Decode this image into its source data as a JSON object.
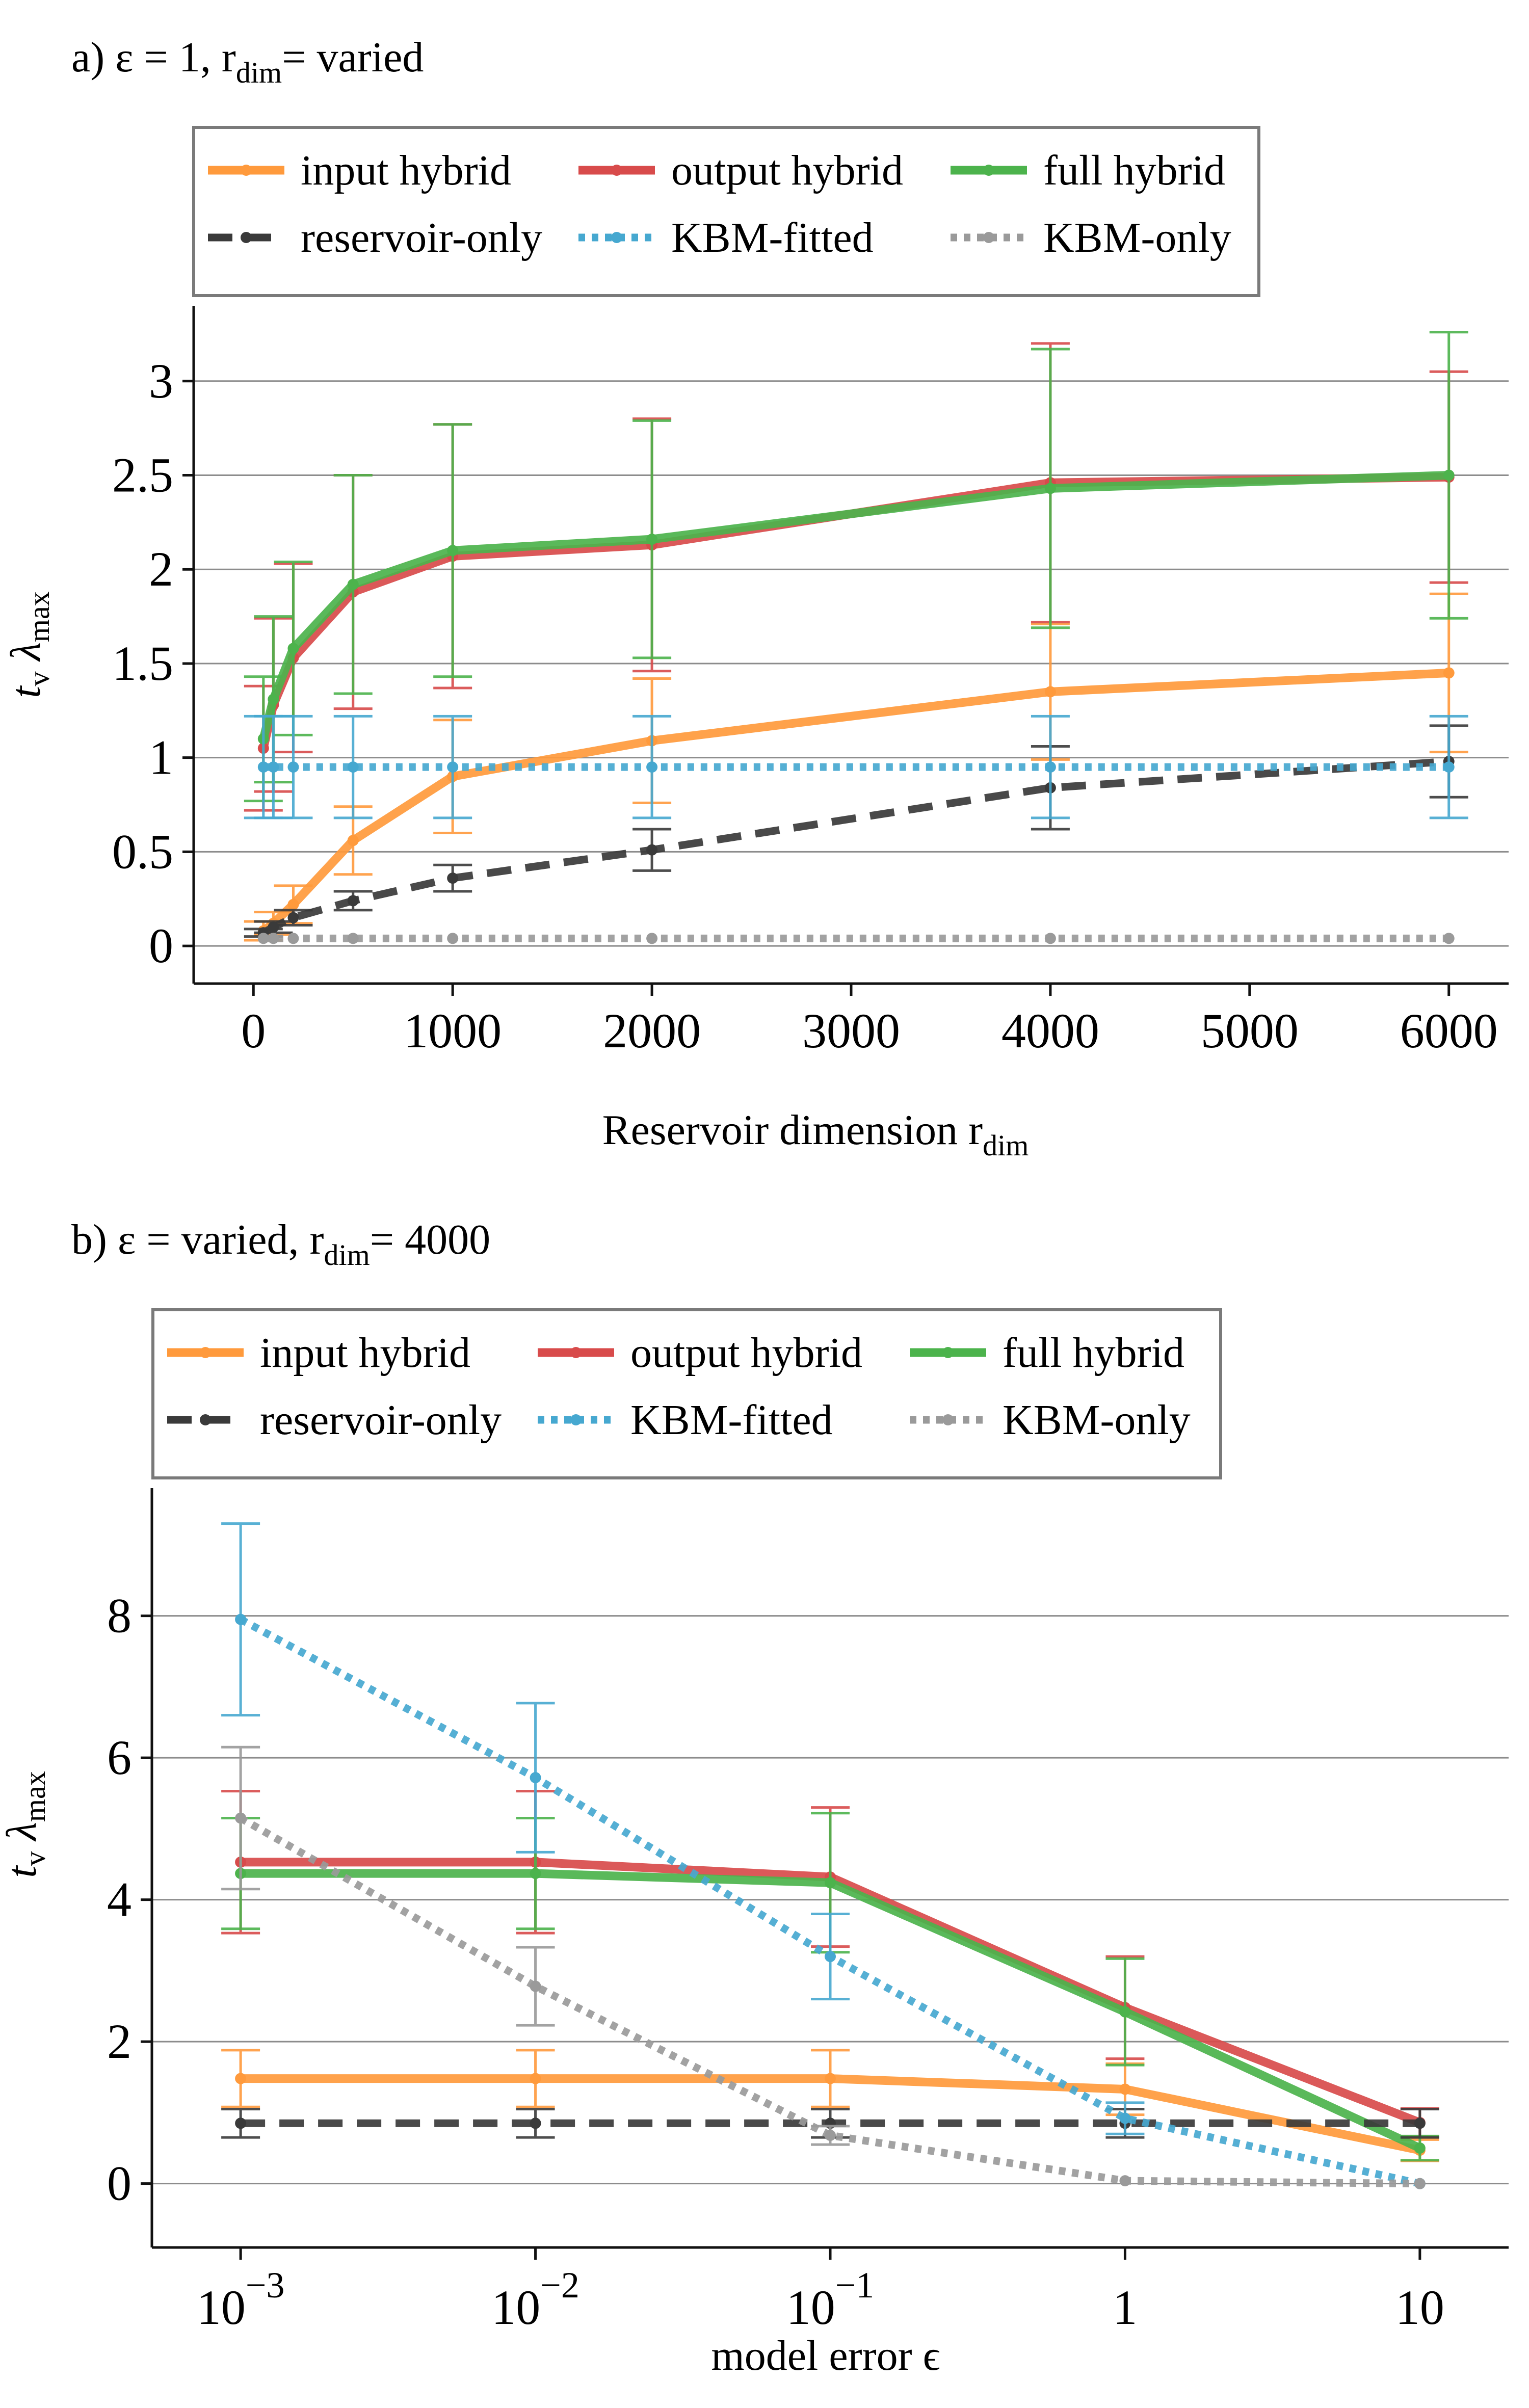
{
  "chart_data": [
    {
      "type": "line",
      "panel_title": {
        "main": "a) ε = 1, r",
        "sub": "dim",
        "rest": "= varied"
      },
      "xlabel": {
        "main": "Reservoir dimension r",
        "sub": "dim"
      },
      "ylabel": {
        "main": "t",
        "sub1": "v",
        "mid": " λ",
        "sub2": "max"
      },
      "xscale": "linear",
      "xlim": [
        -300,
        6300
      ],
      "ylim": [
        -0.2,
        3.4
      ],
      "xticks": [
        {
          "v": 0,
          "label": "0"
        },
        {
          "v": 1000,
          "label": "1000"
        },
        {
          "v": 2000,
          "label": "2000"
        },
        {
          "v": 3000,
          "label": "3000"
        },
        {
          "v": 4000,
          "label": "4000"
        },
        {
          "v": 5000,
          "label": "5000"
        },
        {
          "v": 6000,
          "label": "6000"
        }
      ],
      "yticks": [
        {
          "v": 0,
          "label": "0"
        },
        {
          "v": 0.5,
          "label": "0.5"
        },
        {
          "v": 1,
          "label": "1"
        },
        {
          "v": 1.5,
          "label": "1.5"
        },
        {
          "v": 2,
          "label": "2"
        },
        {
          "v": 2.5,
          "label": "2.5"
        },
        {
          "v": 3,
          "label": "3"
        }
      ],
      "grid": "horizontal",
      "legend_position": "top",
      "series": [
        {
          "name": "input hybrid",
          "color": "#ff9a3c",
          "style": "solid",
          "x": [
            50,
            100,
            200,
            500,
            1000,
            2000,
            4000,
            6000
          ],
          "y": [
            0.08,
            0.12,
            0.22,
            0.56,
            0.9,
            1.09,
            1.35,
            1.45
          ],
          "err": [
            0.05,
            0.06,
            0.1,
            0.18,
            0.3,
            0.33,
            0.36,
            0.42
          ]
        },
        {
          "name": "output hybrid",
          "color": "#d84b4b",
          "style": "solid",
          "x": [
            50,
            100,
            200,
            500,
            1000,
            2000,
            4000,
            6000
          ],
          "y": [
            1.05,
            1.28,
            1.53,
            1.88,
            2.07,
            2.13,
            2.46,
            2.49
          ],
          "err": [
            0.33,
            0.46,
            0.5,
            0.62,
            0.7,
            0.67,
            0.74,
            0.56
          ]
        },
        {
          "name": "full hybrid",
          "color": "#4cb34c",
          "style": "solid",
          "x": [
            50,
            100,
            200,
            500,
            1000,
            2000,
            4000,
            6000
          ],
          "y": [
            1.1,
            1.31,
            1.58,
            1.92,
            2.1,
            2.16,
            2.43,
            2.5
          ],
          "err": [
            0.33,
            0.44,
            0.46,
            0.58,
            0.67,
            0.63,
            0.74,
            0.76
          ]
        },
        {
          "name": "reservoir-only",
          "color": "#3a3a3a",
          "style": "dash",
          "x": [
            50,
            100,
            200,
            500,
            1000,
            2000,
            4000,
            6000
          ],
          "y": [
            0.07,
            0.1,
            0.15,
            0.24,
            0.36,
            0.51,
            0.84,
            0.98
          ],
          "err": [
            0.02,
            0.03,
            0.04,
            0.05,
            0.07,
            0.11,
            0.22,
            0.19
          ]
        },
        {
          "name": "KBM-fitted",
          "color": "#46a8d0",
          "style": "dot",
          "x": [
            50,
            100,
            200,
            500,
            1000,
            2000,
            4000,
            6000
          ],
          "y": [
            0.95,
            0.95,
            0.95,
            0.95,
            0.95,
            0.95,
            0.95,
            0.95
          ],
          "err": [
            0.27,
            0.27,
            0.27,
            0.27,
            0.27,
            0.27,
            0.27,
            0.27
          ]
        },
        {
          "name": "KBM-only",
          "color": "#9a9a9a",
          "style": "dot",
          "x": [
            50,
            100,
            200,
            500,
            1000,
            2000,
            4000,
            6000
          ],
          "y": [
            0.04,
            0.04,
            0.04,
            0.04,
            0.04,
            0.04,
            0.04,
            0.04
          ],
          "err": [
            0,
            0,
            0,
            0,
            0,
            0,
            0,
            0
          ]
        }
      ]
    },
    {
      "type": "line",
      "panel_title": {
        "main": "b) ε = varied, r",
        "sub": "dim",
        "rest": "= 4000"
      },
      "xlabel": {
        "main": "model error ϵ",
        "sub": ""
      },
      "ylabel": {
        "main": "t",
        "sub1": "v",
        "mid": " λ",
        "sub2": "max"
      },
      "xscale": "log",
      "xlim": [
        0.0005,
        20
      ],
      "ylim": [
        -0.9,
        9.8
      ],
      "xticks": [
        {
          "v": 0.001,
          "base": "10",
          "exp": "−3"
        },
        {
          "v": 0.01,
          "base": "10",
          "exp": "−2"
        },
        {
          "v": 0.1,
          "base": "10",
          "exp": "−1"
        },
        {
          "v": 1,
          "base": "1",
          "exp": ""
        },
        {
          "v": 10,
          "base": "10",
          "exp": ""
        }
      ],
      "yticks": [
        {
          "v": 0,
          "label": "0"
        },
        {
          "v": 2,
          "label": "2"
        },
        {
          "v": 4,
          "label": "4"
        },
        {
          "v": 6,
          "label": "6"
        },
        {
          "v": 8,
          "label": "8"
        }
      ],
      "grid": "horizontal",
      "legend_position": "top",
      "series": [
        {
          "name": "input hybrid",
          "color": "#ff9a3c",
          "style": "solid",
          "x": [
            0.001,
            0.01,
            0.1,
            1,
            10
          ],
          "y": [
            1.48,
            1.48,
            1.48,
            1.33,
            0.47
          ],
          "err": [
            0.4,
            0.4,
            0.4,
            0.36,
            0.15
          ]
        },
        {
          "name": "output hybrid",
          "color": "#d84b4b",
          "style": "solid",
          "x": [
            0.001,
            0.01,
            0.1,
            1,
            10
          ],
          "y": [
            4.53,
            4.53,
            4.32,
            2.48,
            0.86
          ],
          "err": [
            1.0,
            1.0,
            0.98,
            0.72,
            0.2
          ]
        },
        {
          "name": "full hybrid",
          "color": "#4cb34c",
          "style": "solid",
          "x": [
            0.001,
            0.01,
            0.1,
            1,
            10
          ],
          "y": [
            4.37,
            4.37,
            4.24,
            2.42,
            0.5
          ],
          "err": [
            0.78,
            0.78,
            0.98,
            0.75,
            0.17
          ]
        },
        {
          "name": "reservoir-only",
          "color": "#3a3a3a",
          "style": "dash",
          "x": [
            0.001,
            0.01,
            0.1,
            1,
            10
          ],
          "y": [
            0.85,
            0.85,
            0.85,
            0.85,
            0.85
          ],
          "err": [
            0.2,
            0.2,
            0.2,
            0.2,
            0.2
          ]
        },
        {
          "name": "KBM-fitted",
          "color": "#46a8d0",
          "style": "dot",
          "x": [
            0.001,
            0.01,
            0.1,
            1,
            10
          ],
          "y": [
            7.95,
            5.72,
            3.2,
            0.92,
            0.0
          ],
          "err": [
            1.35,
            1.05,
            0.6,
            0.22,
            0.0
          ]
        },
        {
          "name": "KBM-only",
          "color": "#9a9a9a",
          "style": "dot",
          "x": [
            0.001,
            0.01,
            0.1,
            1,
            10
          ],
          "y": [
            5.15,
            2.78,
            0.68,
            0.04,
            0.0
          ],
          "err": [
            1.0,
            0.55,
            0.13,
            0.0,
            0.0
          ]
        }
      ]
    }
  ]
}
